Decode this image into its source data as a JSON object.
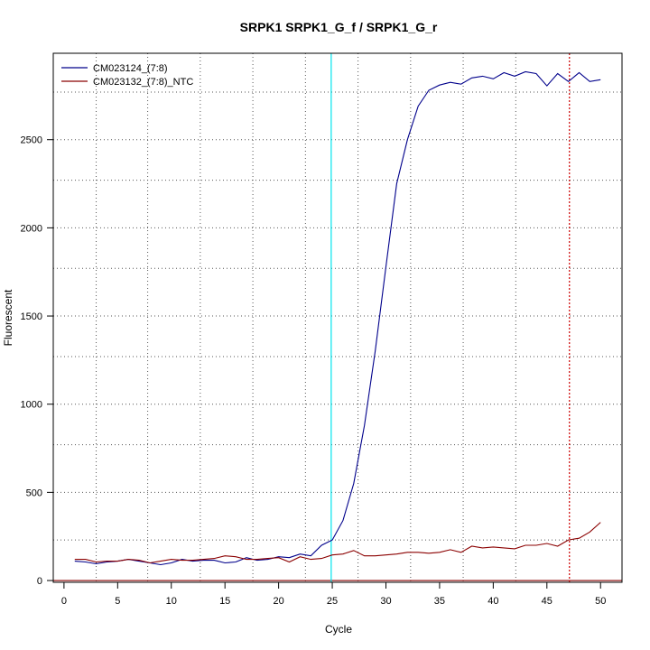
{
  "chart_data": {
    "type": "line",
    "title": "SRPK1  SRPK1_G_f / SRPK1_G_r",
    "xlabel": "Cycle",
    "ylabel": "Fluorescent",
    "xlim": [
      -1,
      52
    ],
    "ylim": [
      -10,
      2990
    ],
    "xticks": [
      0,
      5,
      10,
      15,
      20,
      25,
      30,
      35,
      40,
      45,
      50
    ],
    "yticks": [
      0,
      500,
      1000,
      1500,
      2000,
      2500
    ],
    "grid": {
      "vertical_dotted_x": [
        3,
        7.8,
        12.7,
        17.6,
        22.5,
        27.4,
        32.3,
        37.2,
        42.1
      ],
      "horizontal_dotted_y": [
        0,
        230,
        500,
        770,
        1000,
        1270,
        1500,
        1770,
        2000,
        2270,
        2500,
        2770
      ]
    },
    "legend_position": "top-left",
    "threshold_line": {
      "y": 0,
      "color": "#8b0000"
    },
    "markers": [
      {
        "x": 24.9,
        "color": "#00e5ee",
        "style": "solid"
      },
      {
        "x": 47.1,
        "color": "#cc0000",
        "style": "dotted"
      }
    ],
    "series": [
      {
        "name": "CM023124_(7:8)",
        "color": "#00008b",
        "x": [
          1,
          2,
          3,
          4,
          5,
          6,
          7,
          8,
          9,
          10,
          11,
          12,
          13,
          14,
          15,
          16,
          17,
          18,
          19,
          20,
          21,
          22,
          23,
          24,
          25,
          26,
          27,
          28,
          29,
          30,
          31,
          32,
          33,
          34,
          35,
          36,
          37,
          38,
          39,
          40,
          41,
          42,
          43,
          44,
          45,
          46,
          47,
          48,
          49,
          50
        ],
        "y": [
          110,
          105,
          95,
          105,
          110,
          120,
          110,
          100,
          90,
          100,
          120,
          110,
          115,
          115,
          100,
          105,
          130,
          115,
          120,
          135,
          130,
          150,
          140,
          200,
          230,
          340,
          550,
          880,
          1300,
          1780,
          2250,
          2500,
          2690,
          2780,
          2810,
          2825,
          2815,
          2850,
          2860,
          2845,
          2880,
          2860,
          2885,
          2875,
          2805,
          2875,
          2830,
          2880,
          2830,
          2840
        ]
      },
      {
        "name": "CM023132_(7:8)_NTC",
        "color": "#8b0000",
        "x": [
          1,
          2,
          3,
          4,
          5,
          6,
          7,
          8,
          9,
          10,
          11,
          12,
          13,
          14,
          15,
          16,
          17,
          18,
          19,
          20,
          21,
          22,
          23,
          24,
          25,
          26,
          27,
          28,
          29,
          30,
          31,
          32,
          33,
          34,
          35,
          36,
          37,
          38,
          39,
          40,
          41,
          42,
          43,
          44,
          45,
          46,
          47,
          48,
          49,
          50
        ],
        "y": [
          120,
          120,
          105,
          110,
          110,
          120,
          115,
          100,
          110,
          120,
          115,
          115,
          120,
          125,
          140,
          135,
          120,
          120,
          125,
          130,
          105,
          135,
          120,
          125,
          145,
          150,
          170,
          140,
          140,
          145,
          150,
          160,
          160,
          155,
          160,
          175,
          160,
          195,
          185,
          190,
          185,
          180,
          200,
          200,
          210,
          195,
          230,
          240,
          275,
          330
        ]
      }
    ]
  }
}
